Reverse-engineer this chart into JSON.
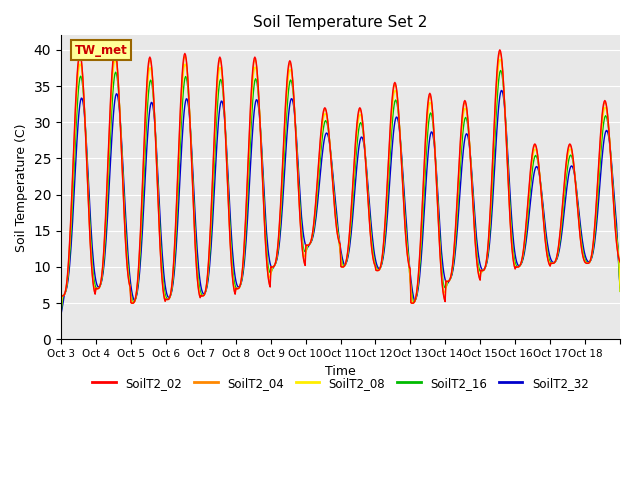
{
  "title": "Soil Temperature Set 2",
  "xlabel": "Time",
  "ylabel": "Soil Temperature (C)",
  "ylim": [
    0,
    42
  ],
  "yticks": [
    0,
    5,
    10,
    15,
    20,
    25,
    30,
    35,
    40
  ],
  "series_labels": [
    "SoilT2_02",
    "SoilT2_04",
    "SoilT2_08",
    "SoilT2_16",
    "SoilT2_32"
  ],
  "series_colors": [
    "#ff0000",
    "#ff8800",
    "#ffee00",
    "#00bb00",
    "#0000cc"
  ],
  "annotation_text": "TW_met",
  "annotation_color": "#cc0000",
  "annotation_bg": "#ffff99",
  "annotation_border": "#996600",
  "background_color": "#e8e8e8",
  "x_tick_labels": [
    "Oct 3",
    "Oct 4",
    "Oct 5",
    "Oct 6",
    "Oct 7",
    "Oct 8",
    "Oct 9",
    "Oct 10",
    "Oct 11",
    "Oct 12",
    "Oct 13",
    "Oct 14",
    "Oct 15",
    "Oct 16",
    "Oct 17",
    "Oct 18"
  ],
  "num_days": 16,
  "points_per_day": 48,
  "daily_max_02": [
    39.5,
    40.0,
    39.0,
    39.5,
    39.0,
    39.0,
    38.5,
    32.0,
    32.0,
    35.5,
    34.0,
    33.0,
    40.0,
    27.0,
    27.0,
    33.0
  ],
  "daily_min_02": [
    6.0,
    7.0,
    5.0,
    5.5,
    6.0,
    7.0,
    10.0,
    13.0,
    10.0,
    9.5,
    5.0,
    8.0,
    9.5,
    10.0,
    10.5,
    10.5
  ],
  "depth_damp": [
    1.0,
    0.99,
    0.97,
    0.93,
    0.87
  ],
  "depth_lag_h": [
    0.0,
    0.1,
    0.25,
    0.6,
    1.2
  ],
  "depth_smooth": [
    1,
    1,
    2,
    3,
    5
  ]
}
